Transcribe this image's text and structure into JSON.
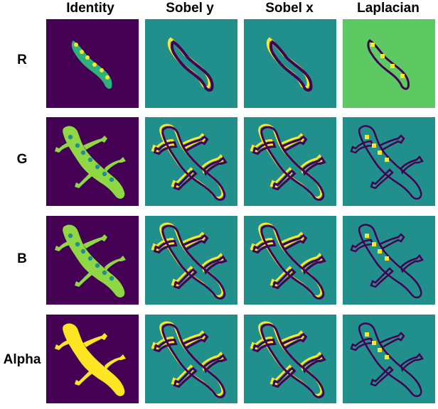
{
  "columns": [
    "Identity",
    "Sobel y",
    "Sobel x",
    "Laplacian"
  ],
  "rows": [
    "R",
    "G",
    "B",
    "Alpha"
  ],
  "colors": {
    "viridis_low": "#440154",
    "viridis_mid": "#21908c",
    "viridis_high": "#fde725",
    "green": "#5ec962",
    "teal": "#2a9a8a"
  },
  "cells": [
    [
      {
        "filter": "identity",
        "channel": "r",
        "bg": "#440154",
        "shape": "worm",
        "fill": "#2db27d",
        "accent": "#fde725"
      },
      {
        "filter": "sobel-y",
        "channel": "r",
        "bg": "#21908c",
        "shape": "worm-edge",
        "fill": "#fde725",
        "accent": "#440154"
      },
      {
        "filter": "sobel-x",
        "channel": "r",
        "bg": "#21908c",
        "shape": "worm-edge",
        "fill": "#fde725",
        "accent": "#440154"
      },
      {
        "filter": "laplacian",
        "channel": "r",
        "bg": "#5ec962",
        "shape": "worm-lap",
        "fill": "#fde725",
        "accent": "#440154"
      }
    ],
    [
      {
        "filter": "identity",
        "channel": "g",
        "bg": "#440154",
        "shape": "gecko",
        "fill": "#8fd744",
        "accent": "#fde725"
      },
      {
        "filter": "sobel-y",
        "channel": "g",
        "bg": "#21908c",
        "shape": "gecko-edge",
        "fill": "#fde725",
        "accent": "#440154"
      },
      {
        "filter": "sobel-x",
        "channel": "g",
        "bg": "#21908c",
        "shape": "gecko-edge",
        "fill": "#fde725",
        "accent": "#440154"
      },
      {
        "filter": "laplacian",
        "channel": "g",
        "bg": "#21908c",
        "shape": "gecko-lap",
        "fill": "#fde725",
        "accent": "#440154"
      }
    ],
    [
      {
        "filter": "identity",
        "channel": "b",
        "bg": "#440154",
        "shape": "gecko",
        "fill": "#8fd744",
        "accent": "#fde725"
      },
      {
        "filter": "sobel-y",
        "channel": "b",
        "bg": "#21908c",
        "shape": "gecko-edge",
        "fill": "#fde725",
        "accent": "#440154"
      },
      {
        "filter": "sobel-x",
        "channel": "b",
        "bg": "#21908c",
        "shape": "gecko-edge",
        "fill": "#fde725",
        "accent": "#440154"
      },
      {
        "filter": "laplacian",
        "channel": "b",
        "bg": "#21908c",
        "shape": "gecko-lap",
        "fill": "#fde725",
        "accent": "#440154"
      }
    ],
    [
      {
        "filter": "identity",
        "channel": "alpha",
        "bg": "#440154",
        "shape": "gecko-solid",
        "fill": "#fde725",
        "accent": "#fde725"
      },
      {
        "filter": "sobel-y",
        "channel": "alpha",
        "bg": "#21908c",
        "shape": "gecko-edge",
        "fill": "#fde725",
        "accent": "#440154"
      },
      {
        "filter": "sobel-x",
        "channel": "alpha",
        "bg": "#21908c",
        "shape": "gecko-edge",
        "fill": "#fde725",
        "accent": "#440154"
      },
      {
        "filter": "laplacian",
        "channel": "alpha",
        "bg": "#21908c",
        "shape": "gecko-lap",
        "fill": "#fde725",
        "accent": "#440154"
      }
    ]
  ]
}
